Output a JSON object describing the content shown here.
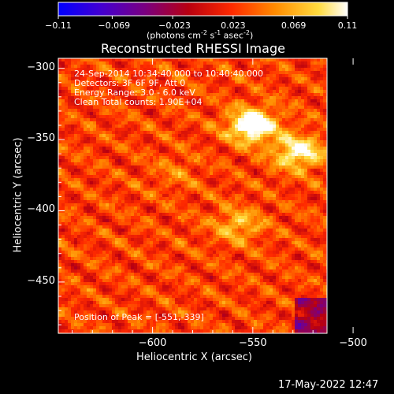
{
  "colorbar": {
    "tick_labels": [
      "-0.11",
      "-0.069",
      "-0.023",
      "0.023",
      "0.069",
      "0.11"
    ],
    "units_text": "(photons cm",
    "units_sup1": "-2",
    "units_mid1": " s",
    "units_sup2": "-1",
    "units_mid2": " asec",
    "units_sup3": "-2",
    "units_end": ")",
    "range": [
      -0.11,
      0.11
    ],
    "colors": [
      "#0000ff",
      "#5a00c8",
      "#6e0096",
      "#b00000",
      "#ff3300",
      "#ff9900",
      "#ffe040",
      "#ffffff"
    ]
  },
  "chart_data": {
    "type": "heatmap",
    "title": "Reconstructed RHESSI Image",
    "xlabel": "Heliocentric X (arcsec)",
    "ylabel": "Heliocentric Y (arcsec)",
    "xlim": [
      -647,
      -513
    ],
    "ylim": [
      -486,
      -293
    ],
    "x_ticks": [
      -600,
      -550,
      -500
    ],
    "x_tick_labels": [
      "−600",
      "−550",
      "−500"
    ],
    "y_ticks": [
      -300,
      -350,
      -400,
      -450
    ],
    "y_tick_labels": [
      "−300",
      "−350",
      "−400",
      "−450"
    ],
    "peak": [
      -551,
      -339
    ],
    "hotspots": [
      {
        "x": -551,
        "y": -339,
        "v": 0.11
      },
      {
        "x": -528,
        "y": -358,
        "v": 0.085
      },
      {
        "x": -558,
        "y": -409,
        "v": 0.05
      },
      {
        "x": -588,
        "y": -372,
        "v": 0.02
      }
    ],
    "annotations": [
      "24-Sep-2014 10:34:40.000 to 10:40:40.000",
      "Detectors: 3F 6F 9F, Att 0",
      "Energy Range: 3.0 - 6.0 keV",
      "Clean    Total counts: 1.90E+04"
    ],
    "peak_label": "Position of Peak = [-551,-339]"
  },
  "timestamp": "17-May-2022 12:47"
}
